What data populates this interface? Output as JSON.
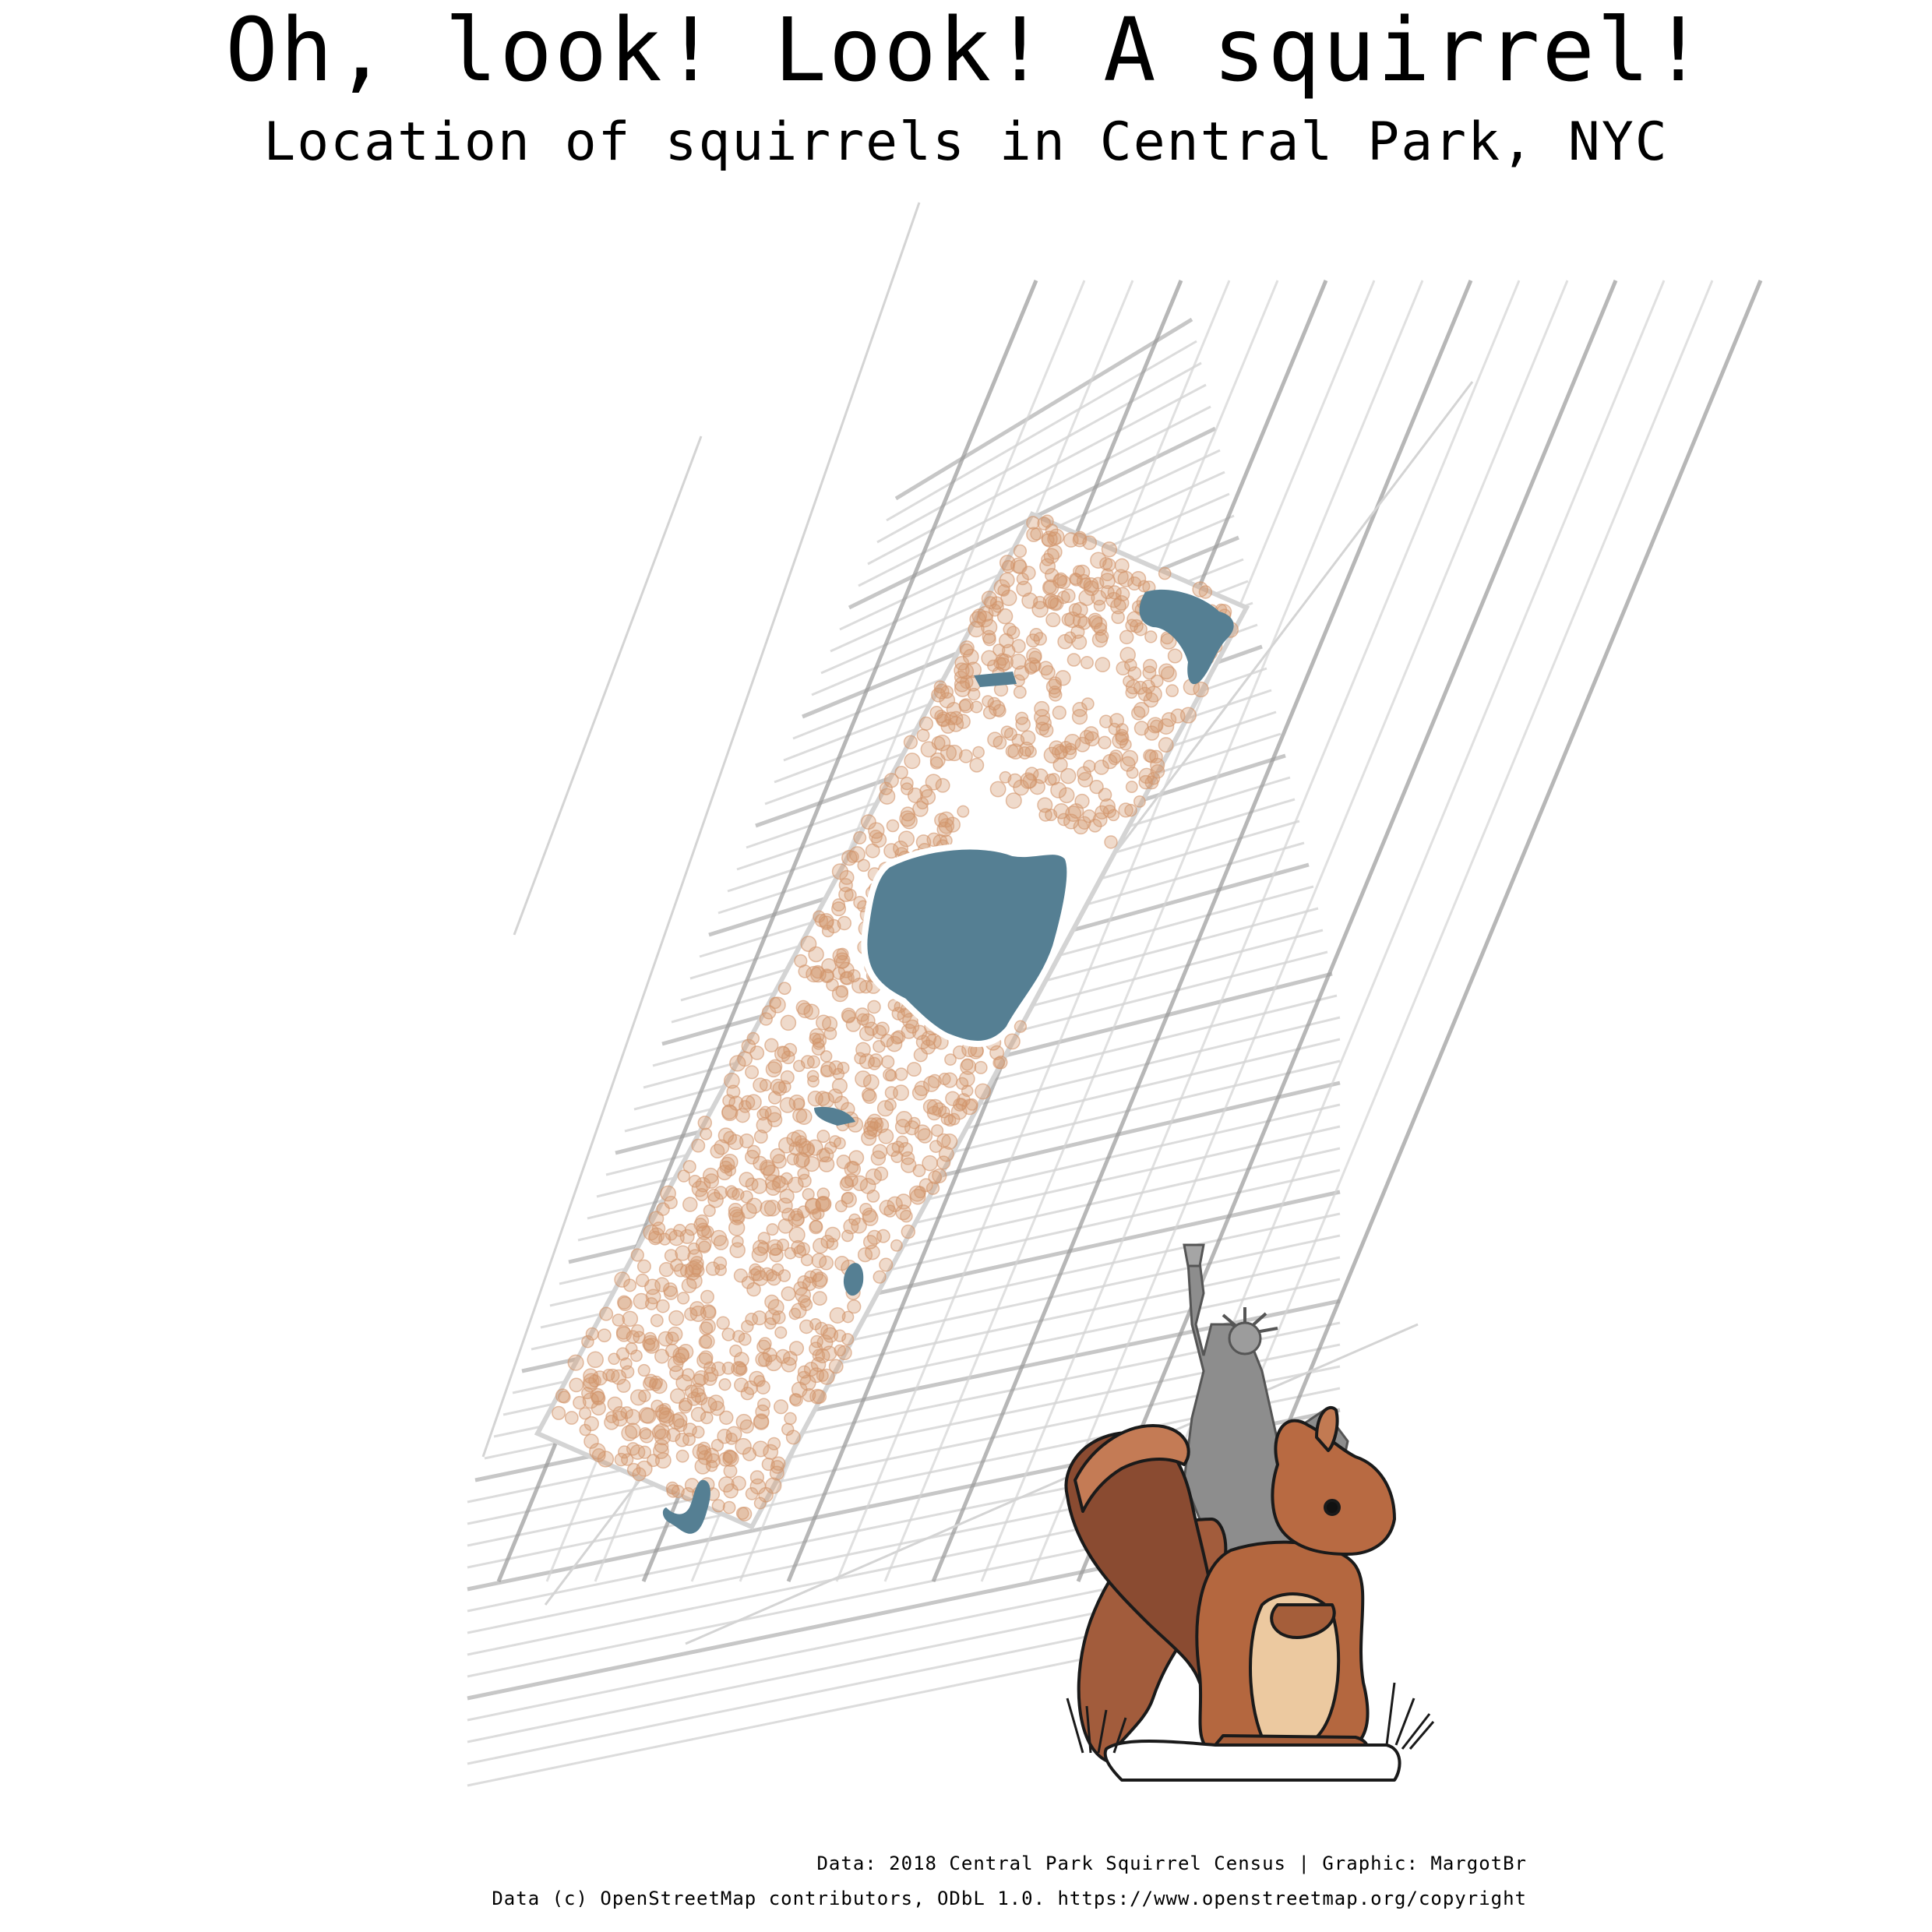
{
  "title": "Oh, look! Look! A squirrel!",
  "subtitle": "Location of squirrels in Central Park, NYC",
  "caption_data": "Data: 2018 Central Park Squirrel Census | Graphic: MargotBr",
  "caption_osm": "Data (c) OpenStreetMap contributors, ODbL 1.0. https://www.openstreetmap.org/copyright",
  "colors": {
    "water": "#557f93",
    "squirrel_point": "#d2956a",
    "street": "#9a9a9a",
    "street_light": "#d4d4d4",
    "background": "#ffffff"
  },
  "map": {
    "layers": [
      "streets",
      "paths",
      "water",
      "squirrel-sightings"
    ],
    "water_bodies": [
      "reservoir",
      "harlem-meer",
      "lake",
      "turtle-pond",
      "the-pond",
      "pond-north"
    ],
    "illustrations": [
      "squirrel-illustration",
      "statue-of-liberty-illustration"
    ]
  }
}
